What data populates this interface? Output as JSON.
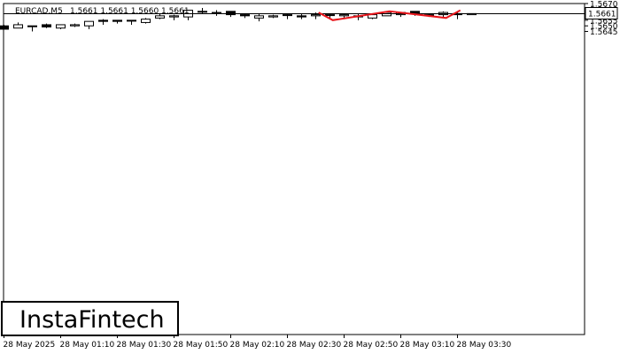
{
  "header": {
    "symbol": "EURCAD,M5",
    "ohlc": "1.5661 1.5661 1.5660 1.5661"
  },
  "logo": {
    "text": "InstaFintech"
  },
  "current_price": {
    "label": "1.5661",
    "value": 1.5661
  },
  "colors": {
    "pattern": "#e8151b",
    "candle": "#000000",
    "background": "#ffffff"
  },
  "chart_data": {
    "type": "candlestick",
    "title": "",
    "xlabel": "",
    "ylabel": "",
    "ylim": [
      1.5641,
      1.567
    ],
    "y_ticks": [
      1.567,
      1.5665,
      1.566,
      1.5655,
      1.565,
      1.5645
    ],
    "y_tick_labels": [
      "1.5670",
      "1.5665",
      "1.5660",
      "1.5655",
      "1.5650",
      "1.5645"
    ],
    "x_ticks": [
      {
        "index": 0,
        "label": "28 May 2025"
      },
      {
        "index": 4,
        "label": "28 May 01:10"
      },
      {
        "index": 8,
        "label": "28 May 01:30"
      },
      {
        "index": 12,
        "label": "28 May 01:50"
      },
      {
        "index": 16,
        "label": "28 May 02:10"
      },
      {
        "index": 20,
        "label": "28 May 02:30"
      },
      {
        "index": 24,
        "label": "28 May 02:50"
      },
      {
        "index": 28,
        "label": "28 May 03:10"
      },
      {
        "index": 32,
        "label": "28 May 03:30"
      }
    ],
    "candles": [
      {
        "o": 1.565,
        "h": 1.5651,
        "l": 1.5647,
        "c": 1.5647
      },
      {
        "o": 1.5648,
        "h": 1.5653,
        "l": 1.5648,
        "c": 1.5651
      },
      {
        "o": 1.565,
        "h": 1.565,
        "l": 1.5645,
        "c": 1.565
      },
      {
        "o": 1.5651,
        "h": 1.5652,
        "l": 1.5648,
        "c": 1.5649
      },
      {
        "o": 1.5648,
        "h": 1.5651,
        "l": 1.5647,
        "c": 1.5651
      },
      {
        "o": 1.565,
        "h": 1.5652,
        "l": 1.5649,
        "c": 1.5651
      },
      {
        "o": 1.565,
        "h": 1.5654,
        "l": 1.5647,
        "c": 1.5654
      },
      {
        "o": 1.5655,
        "h": 1.5656,
        "l": 1.5651,
        "c": 1.5654
      },
      {
        "o": 1.5655,
        "h": 1.5655,
        "l": 1.5652,
        "c": 1.5654
      },
      {
        "o": 1.5655,
        "h": 1.5655,
        "l": 1.5651,
        "c": 1.5655
      },
      {
        "o": 1.5653,
        "h": 1.5657,
        "l": 1.5652,
        "c": 1.5656
      },
      {
        "o": 1.5657,
        "h": 1.5661,
        "l": 1.5656,
        "c": 1.5659
      },
      {
        "o": 1.5658,
        "h": 1.566,
        "l": 1.5655,
        "c": 1.5659
      },
      {
        "o": 1.5658,
        "h": 1.5664,
        "l": 1.5655,
        "c": 1.5664
      },
      {
        "o": 1.5663,
        "h": 1.5666,
        "l": 1.5661,
        "c": 1.5663
      },
      {
        "o": 1.5662,
        "h": 1.5664,
        "l": 1.5659,
        "c": 1.5662
      },
      {
        "o": 1.5663,
        "h": 1.5663,
        "l": 1.5658,
        "c": 1.566
      },
      {
        "o": 1.566,
        "h": 1.5661,
        "l": 1.5657,
        "c": 1.5659
      },
      {
        "o": 1.5657,
        "h": 1.5661,
        "l": 1.5654,
        "c": 1.5659
      },
      {
        "o": 1.5658,
        "h": 1.566,
        "l": 1.5657,
        "c": 1.5659
      },
      {
        "o": 1.566,
        "h": 1.5661,
        "l": 1.5656,
        "c": 1.566
      },
      {
        "o": 1.5659,
        "h": 1.5661,
        "l": 1.5656,
        "c": 1.5658
      },
      {
        "o": 1.5659,
        "h": 1.5662,
        "l": 1.5656,
        "c": 1.566
      },
      {
        "o": 1.566,
        "h": 1.5661,
        "l": 1.5657,
        "c": 1.566
      },
      {
        "o": 1.5659,
        "h": 1.5661,
        "l": 1.5656,
        "c": 1.566
      },
      {
        "o": 1.5659,
        "h": 1.5661,
        "l": 1.5655,
        "c": 1.5658
      },
      {
        "o": 1.5657,
        "h": 1.5661,
        "l": 1.5656,
        "c": 1.566
      },
      {
        "o": 1.5659,
        "h": 1.5663,
        "l": 1.5659,
        "c": 1.5662
      },
      {
        "o": 1.566,
        "h": 1.5662,
        "l": 1.5658,
        "c": 1.5662
      },
      {
        "o": 1.5663,
        "h": 1.5663,
        "l": 1.5659,
        "c": 1.5661
      },
      {
        "o": 1.566,
        "h": 1.5661,
        "l": 1.5658,
        "c": 1.5659
      },
      {
        "o": 1.566,
        "h": 1.5663,
        "l": 1.5658,
        "c": 1.5662
      },
      {
        "o": 1.5661,
        "h": 1.5662,
        "l": 1.5656,
        "c": 1.566
      },
      {
        "o": 1.566,
        "h": 1.5661,
        "l": 1.566,
        "c": 1.5661
      }
    ],
    "pattern_line": [
      {
        "index": 22.2,
        "value": 1.5662
      },
      {
        "index": 23.2,
        "value": 1.56551
      },
      {
        "index": 27.2,
        "value": 1.5663
      },
      {
        "index": 31.2,
        "value": 1.56571
      },
      {
        "index": 32.2,
        "value": 1.5664
      }
    ],
    "grid": false
  }
}
